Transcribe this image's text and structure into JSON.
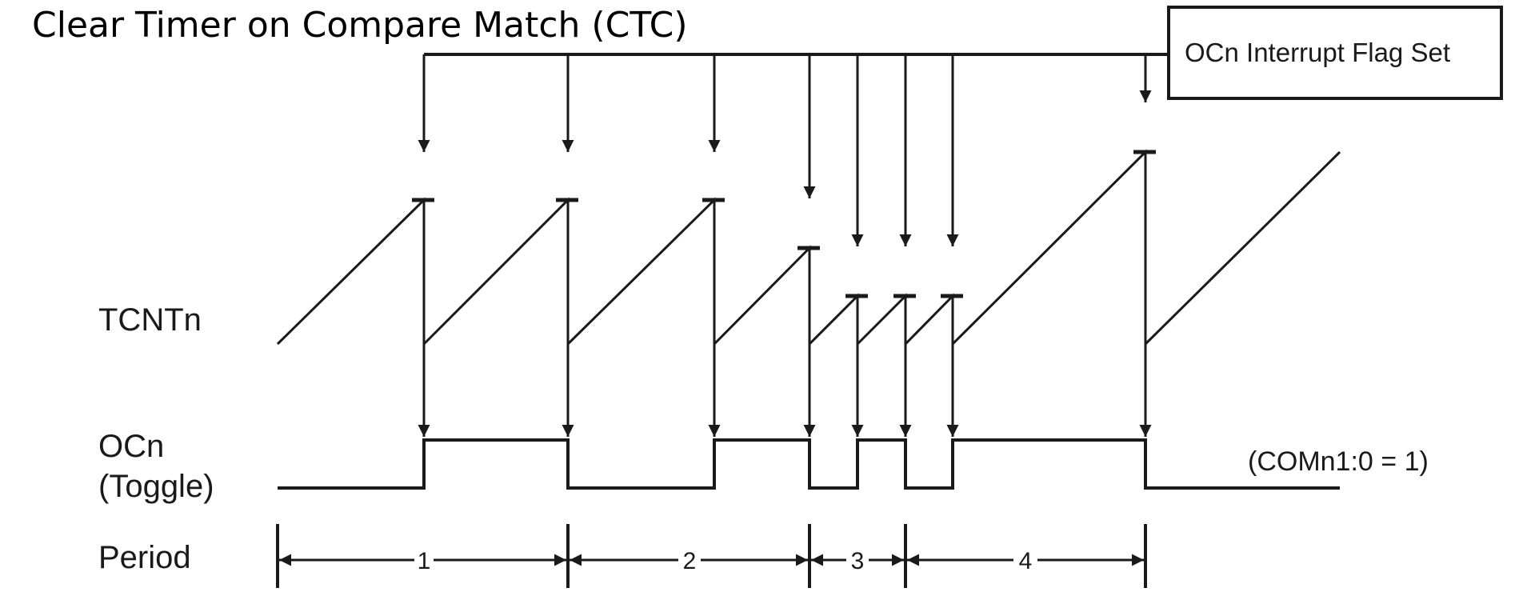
{
  "title": "Clear Timer on Compare Match (CTC)",
  "flag_label": "OCn Interrupt Flag Set",
  "signals": {
    "counter": "TCNTn",
    "output_line1": "OCn",
    "output_line2": "(Toggle)",
    "period": "Period"
  },
  "mode_note": "(COMn1:0 = 1)",
  "periods": [
    "1",
    "2",
    "3",
    "4"
  ],
  "colors": {
    "line": "#1a1a1a",
    "background": "#ffffff"
  }
}
